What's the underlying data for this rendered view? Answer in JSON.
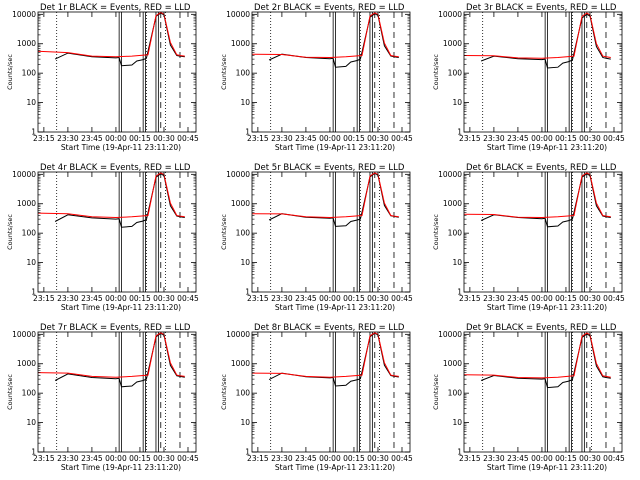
{
  "chart_data": {
    "type": "line",
    "layout": "3x3 grid",
    "xlabel": "Start Time (19-Apr-11 23:11:20)",
    "ylabel": "Counts/sec",
    "y_scale": "log",
    "ylim": [
      1,
      12000
    ],
    "xlim": [
      "23:11:20",
      "00:50:00"
    ],
    "x_ticks": [
      "23:15",
      "23:30",
      "23:45",
      "00:00",
      "00:15",
      "00:30",
      "00:45"
    ],
    "y_ticks": [
      "1",
      "10",
      "100",
      "1000",
      "10000"
    ],
    "colors": {
      "events": "#000000",
      "lld": "#ff0000",
      "axes": "#000000"
    },
    "vlines": {
      "dotted": [
        "23:23:00",
        "00:19:00",
        "00:31:00"
      ],
      "dashed": [
        "00:28:00",
        "00:40:00"
      ],
      "solid_pairs": [
        [
          "00:02:00",
          "00:03:30"
        ],
        [
          "00:17:00",
          "00:18:30"
        ],
        [
          "00:25:00",
          "00:26:30"
        ]
      ]
    },
    "panels": [
      {
        "title": "Det 1r BLACK = Events, RED = LLD",
        "series": [
          {
            "name": "Events",
            "x": [
              "23:22:00",
              "23:30:00",
              "23:45:00",
              "00:00:00",
              "00:02:00",
              "00:03:30",
              "00:10:00",
              "00:13:00",
              "00:17:00",
              "00:19:00",
              "00:25:00",
              "00:28:00",
              "00:30:00",
              "00:34:00",
              "00:38:00",
              "00:40:00",
              "00:43:00"
            ],
            "y": [
              300,
              480,
              360,
              330,
              340,
              180,
              190,
              260,
              290,
              320,
              8500,
              11000,
              9500,
              900,
              400,
              380,
              360
            ]
          },
          {
            "name": "LLD",
            "x": [
              "23:11:20",
              "23:30:00",
              "23:45:00",
              "00:00:00",
              "00:10:00",
              "00:20:00",
              "00:25:00",
              "00:28:00",
              "00:30:00",
              "00:34:00",
              "00:38:00",
              "00:40:00",
              "00:43:00"
            ],
            "y": [
              560,
              500,
              380,
              360,
              380,
              420,
              9000,
              11500,
              10000,
              1100,
              420,
              400,
              380
            ]
          }
        ]
      },
      {
        "title": "Det 2r BLACK = Events, RED = LLD",
        "series": [
          {
            "name": "Events",
            "x": [
              "23:22:00",
              "23:30:00",
              "23:45:00",
              "00:00:00",
              "00:02:00",
              "00:03:30",
              "00:10:00",
              "00:13:00",
              "00:17:00",
              "00:19:00",
              "00:25:00",
              "00:28:00",
              "00:30:00",
              "00:34:00",
              "00:38:00",
              "00:40:00",
              "00:43:00"
            ],
            "y": [
              280,
              440,
              340,
              310,
              320,
              160,
              170,
              240,
              270,
              300,
              8000,
              10500,
              9200,
              850,
              380,
              360,
              340
            ]
          },
          {
            "name": "LLD",
            "x": [
              "23:11:20",
              "23:30:00",
              "23:45:00",
              "00:00:00",
              "00:10:00",
              "00:20:00",
              "00:25:00",
              "00:28:00",
              "00:30:00",
              "00:34:00",
              "00:38:00",
              "00:40:00",
              "00:43:00"
            ],
            "y": [
              440,
              430,
              350,
              340,
              360,
              400,
              8800,
              11200,
              9800,
              1050,
              400,
              380,
              360
            ]
          }
        ]
      },
      {
        "title": "Det 3r BLACK = Events, RED = LLD",
        "series": [
          {
            "name": "Events",
            "x": [
              "23:22:00",
              "23:30:00",
              "23:45:00",
              "00:00:00",
              "00:02:00",
              "00:03:30",
              "00:10:00",
              "00:13:00",
              "00:17:00",
              "00:19:00",
              "00:25:00",
              "00:28:00",
              "00:30:00",
              "00:34:00",
              "00:38:00",
              "00:40:00",
              "00:43:00"
            ],
            "y": [
              260,
              380,
              310,
              290,
              300,
              150,
              160,
              220,
              250,
              280,
              7500,
              10000,
              8800,
              800,
              340,
              320,
              300
            ]
          },
          {
            "name": "LLD",
            "x": [
              "23:11:20",
              "23:30:00",
              "23:45:00",
              "00:00:00",
              "00:10:00",
              "00:20:00",
              "00:25:00",
              "00:28:00",
              "00:30:00",
              "00:34:00",
              "00:38:00",
              "00:40:00",
              "00:43:00"
            ],
            "y": [
              400,
              390,
              330,
              320,
              340,
              380,
              8500,
              11000,
              9600,
              1000,
              380,
              360,
              340
            ]
          }
        ]
      },
      {
        "title": "Det 4r BLACK = Events, RED = LLD",
        "series": [
          {
            "name": "Events",
            "x": [
              "23:22:00",
              "23:30:00",
              "23:45:00",
              "00:00:00",
              "00:02:00",
              "00:03:30",
              "00:10:00",
              "00:13:00",
              "00:17:00",
              "00:19:00",
              "00:25:00",
              "00:28:00",
              "00:30:00",
              "00:34:00",
              "00:38:00",
              "00:40:00",
              "00:43:00"
            ],
            "y": [
              250,
              420,
              330,
              300,
              310,
              160,
              170,
              230,
              260,
              290,
              8000,
              10500,
              9000,
              850,
              380,
              360,
              340
            ]
          },
          {
            "name": "LLD",
            "x": [
              "23:11:20",
              "23:30:00",
              "23:45:00",
              "00:00:00",
              "00:10:00",
              "00:20:00",
              "00:25:00",
              "00:28:00",
              "00:30:00",
              "00:34:00",
              "00:38:00",
              "00:40:00",
              "00:43:00"
            ],
            "y": [
              480,
              460,
              360,
              340,
              360,
              400,
              8800,
              11200,
              9800,
              1050,
              400,
              380,
              360
            ]
          }
        ]
      },
      {
        "title": "Det 5r BLACK = Events, RED = LLD",
        "series": [
          {
            "name": "Events",
            "x": [
              "23:22:00",
              "23:30:00",
              "23:45:00",
              "00:00:00",
              "00:02:00",
              "00:03:30",
              "00:10:00",
              "00:13:00",
              "00:17:00",
              "00:19:00",
              "00:25:00",
              "00:28:00",
              "00:30:00",
              "00:34:00",
              "00:38:00",
              "00:40:00",
              "00:43:00"
            ],
            "y": [
              280,
              460,
              350,
              320,
              330,
              170,
              180,
              250,
              280,
              300,
              8200,
              10800,
              9300,
              880,
              390,
              370,
              350
            ]
          },
          {
            "name": "LLD",
            "x": [
              "23:11:20",
              "23:30:00",
              "23:45:00",
              "00:00:00",
              "00:10:00",
              "00:20:00",
              "00:25:00",
              "00:28:00",
              "00:30:00",
              "00:34:00",
              "00:38:00",
              "00:40:00",
              "00:43:00"
            ],
            "y": [
              460,
              450,
              360,
              340,
              360,
              400,
              8800,
              11200,
              9800,
              1050,
              400,
              380,
              360
            ]
          }
        ]
      },
      {
        "title": "Det 6r BLACK = Events, RED = LLD",
        "series": [
          {
            "name": "Events",
            "x": [
              "23:22:00",
              "23:30:00",
              "23:45:00",
              "00:00:00",
              "00:02:00",
              "00:03:30",
              "00:10:00",
              "00:13:00",
              "00:17:00",
              "00:19:00",
              "00:25:00",
              "00:28:00",
              "00:30:00",
              "00:34:00",
              "00:38:00",
              "00:40:00",
              "00:43:00"
            ],
            "y": [
              270,
              420,
              340,
              310,
              320,
              165,
              175,
              240,
              270,
              300,
              8000,
              10500,
              9000,
              850,
              380,
              360,
              340
            ]
          },
          {
            "name": "LLD",
            "x": [
              "23:11:20",
              "23:30:00",
              "23:45:00",
              "00:00:00",
              "00:10:00",
              "00:20:00",
              "00:25:00",
              "00:28:00",
              "00:30:00",
              "00:34:00",
              "00:38:00",
              "00:40:00",
              "00:43:00"
            ],
            "y": [
              440,
              430,
              350,
              340,
              360,
              400,
              8800,
              11200,
              9800,
              1050,
              400,
              380,
              360
            ]
          }
        ]
      },
      {
        "title": "Det 7r BLACK = Events, RED = LLD",
        "series": [
          {
            "name": "Events",
            "x": [
              "23:22:00",
              "23:30:00",
              "23:45:00",
              "00:00:00",
              "00:02:00",
              "00:03:30",
              "00:10:00",
              "00:13:00",
              "00:17:00",
              "00:19:00",
              "00:25:00",
              "00:28:00",
              "00:30:00",
              "00:34:00",
              "00:38:00",
              "00:40:00",
              "00:43:00"
            ],
            "y": [
              270,
              450,
              340,
              310,
              320,
              165,
              175,
              240,
              270,
              300,
              8200,
              10800,
              9300,
              880,
              390,
              370,
              350
            ]
          },
          {
            "name": "LLD",
            "x": [
              "23:11:20",
              "23:30:00",
              "23:45:00",
              "00:00:00",
              "00:10:00",
              "00:20:00",
              "00:25:00",
              "00:28:00",
              "00:30:00",
              "00:34:00",
              "00:38:00",
              "00:40:00",
              "00:43:00"
            ],
            "y": [
              500,
              480,
              370,
              350,
              370,
              410,
              8900,
              11300,
              9900,
              1080,
              410,
              390,
              370
            ]
          }
        ]
      },
      {
        "title": "Det 8r BLACK = Events, RED = LLD",
        "series": [
          {
            "name": "Events",
            "x": [
              "23:22:00",
              "23:30:00",
              "23:45:00",
              "00:00:00",
              "00:02:00",
              "00:03:30",
              "00:10:00",
              "00:13:00",
              "00:17:00",
              "00:19:00",
              "00:25:00",
              "00:28:00",
              "00:30:00",
              "00:34:00",
              "00:38:00",
              "00:40:00",
              "00:43:00"
            ],
            "y": [
              290,
              480,
              360,
              330,
              340,
              175,
              185,
              255,
              285,
              310,
              8300,
              10900,
              9400,
              890,
              395,
              375,
              355
            ]
          },
          {
            "name": "LLD",
            "x": [
              "23:11:20",
              "23:30:00",
              "23:45:00",
              "00:00:00",
              "00:10:00",
              "00:20:00",
              "00:25:00",
              "00:28:00",
              "00:30:00",
              "00:34:00",
              "00:38:00",
              "00:40:00",
              "00:43:00"
            ],
            "y": [
              480,
              470,
              370,
              350,
              370,
              410,
              8900,
              11300,
              9900,
              1080,
              410,
              390,
              370
            ]
          }
        ]
      },
      {
        "title": "Det 9r BLACK = Events, RED = LLD",
        "series": [
          {
            "name": "Events",
            "x": [
              "23:22:00",
              "23:30:00",
              "23:45:00",
              "00:00:00",
              "00:02:00",
              "00:03:30",
              "00:10:00",
              "00:13:00",
              "00:17:00",
              "00:19:00",
              "00:25:00",
              "00:28:00",
              "00:30:00",
              "00:34:00",
              "00:38:00",
              "00:40:00",
              "00:43:00"
            ],
            "y": [
              270,
              400,
              320,
              300,
              310,
              155,
              165,
              230,
              260,
              290,
              7800,
              10300,
              8900,
              830,
              360,
              340,
              320
            ]
          },
          {
            "name": "LLD",
            "x": [
              "23:11:20",
              "23:30:00",
              "23:45:00",
              "00:00:00",
              "00:10:00",
              "00:20:00",
              "00:25:00",
              "00:28:00",
              "00:30:00",
              "00:34:00",
              "00:38:00",
              "00:40:00",
              "00:43:00"
            ],
            "y": [
              420,
              410,
              340,
              330,
              350,
              390,
              8600,
              11000,
              9700,
              1020,
              390,
              370,
              350
            ]
          }
        ]
      }
    ]
  }
}
